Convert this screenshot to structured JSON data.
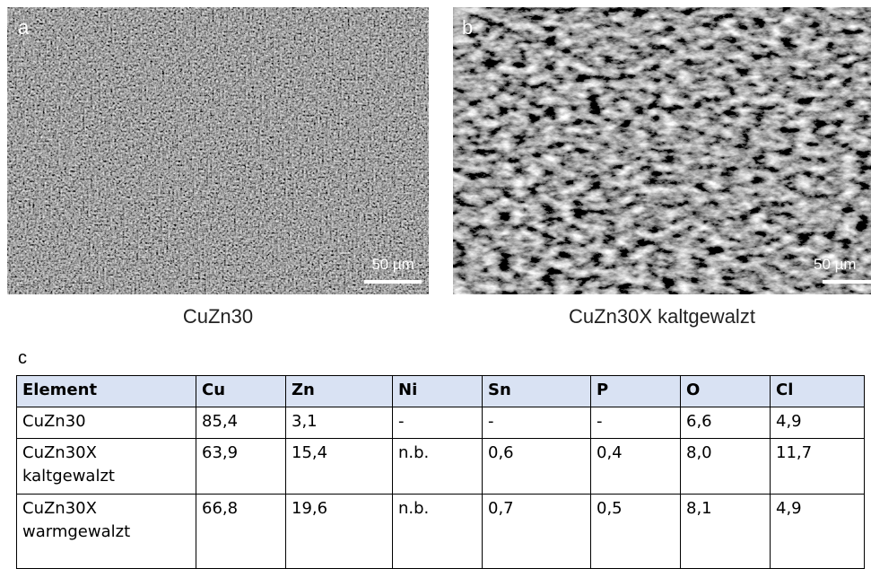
{
  "panels": [
    {
      "label": "a",
      "scale": "50 µm",
      "caption": "CuZn30"
    },
    {
      "label": "b",
      "scale": "50 µm",
      "caption": "CuZn30X kaltgewalzt"
    }
  ],
  "table": {
    "label": "c",
    "header": [
      "Element",
      "Cu",
      "Zn",
      "Ni",
      "Sn",
      "P",
      "O",
      "Cl"
    ],
    "rows": [
      [
        "CuZn30",
        "85,4",
        "3,1",
        "-",
        "-",
        "-",
        "6,6",
        "4,9"
      ],
      [
        "CuZn30X kaltgewalzt",
        "63,9",
        "15,4",
        "n.b.",
        "0,6",
        "0,4",
        "8,0",
        "11,7"
      ],
      [
        "CuZn30X warmgewalzt",
        "66,8",
        "19,6",
        "n.b.",
        "0,7",
        "0,5",
        "8,1",
        "4,9"
      ]
    ]
  }
}
